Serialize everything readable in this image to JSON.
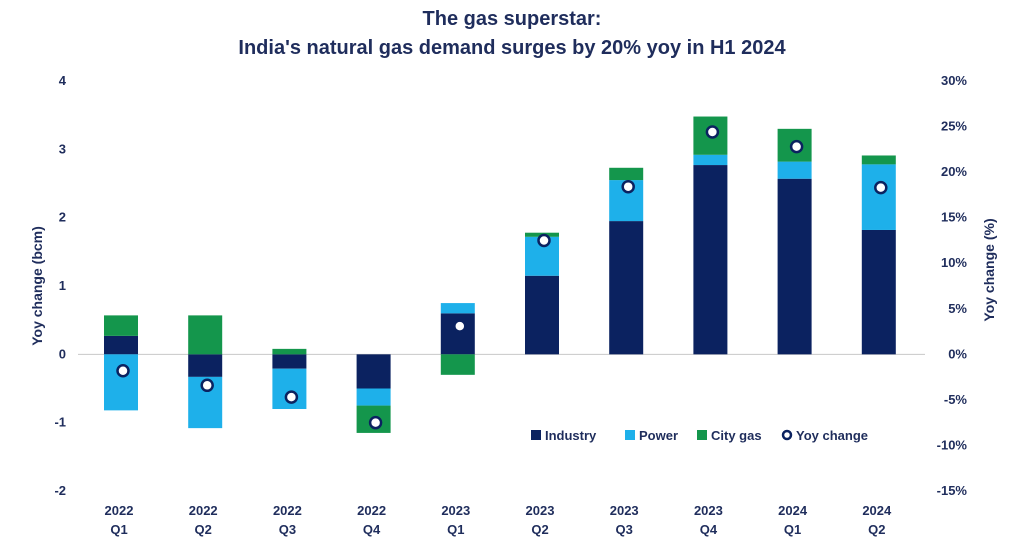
{
  "title_line1": "The gas superstar:",
  "title_line2": "India's natural gas demand surges by 20% yoy in H1 2024",
  "chart_data": {
    "type": "bar",
    "stacked": true,
    "title": "The gas superstar: India's natural gas demand surges by 20% yoy in H1 2024",
    "ylabel": "Yoy change (bcm)",
    "y2label": "Yoy change (%)",
    "ylim": [
      -2,
      4
    ],
    "y2lim": [
      -15,
      30
    ],
    "yticks": [
      "4",
      "3",
      "2",
      "1",
      "0",
      "-1",
      "-2"
    ],
    "y2ticks": [
      "30%",
      "25%",
      "20%",
      "15%",
      "10%",
      "5%",
      "0%",
      "-5%",
      "-10%",
      "-15%"
    ],
    "categories": [
      [
        "2022",
        "Q1"
      ],
      [
        "2022",
        "Q2"
      ],
      [
        "2022",
        "Q3"
      ],
      [
        "2022",
        "Q4"
      ],
      [
        "2023",
        "Q1"
      ],
      [
        "2023",
        "Q2"
      ],
      [
        "2023",
        "Q3"
      ],
      [
        "2023",
        "Q4"
      ],
      [
        "2024",
        "Q1"
      ],
      [
        "2024",
        "Q2"
      ]
    ],
    "series": [
      {
        "name": "Industry",
        "color": "#0b2260",
        "values": [
          0.27,
          -0.33,
          -0.21,
          -0.5,
          0.6,
          1.15,
          1.95,
          2.77,
          2.57,
          1.82
        ]
      },
      {
        "name": "Power",
        "color": "#1eb0ea",
        "values": [
          -0.82,
          -0.75,
          -0.59,
          -0.25,
          0.15,
          0.57,
          0.6,
          0.15,
          0.25,
          0.96
        ]
      },
      {
        "name": "City gas",
        "color": "#14964c",
        "values": [
          0.3,
          0.57,
          0.08,
          -0.4,
          -0.3,
          0.06,
          0.18,
          0.56,
          0.48,
          0.13
        ]
      }
    ],
    "line_series": {
      "name": "Yoy change",
      "axis": "right",
      "values": [
        -1.8,
        -3.4,
        -4.7,
        -7.5,
        3.1,
        12.5,
        18.4,
        24.4,
        22.8,
        18.3
      ]
    },
    "legend": {
      "position": "bottom-right",
      "items": [
        "Industry",
        "Power",
        "City gas",
        "Yoy change"
      ]
    }
  }
}
